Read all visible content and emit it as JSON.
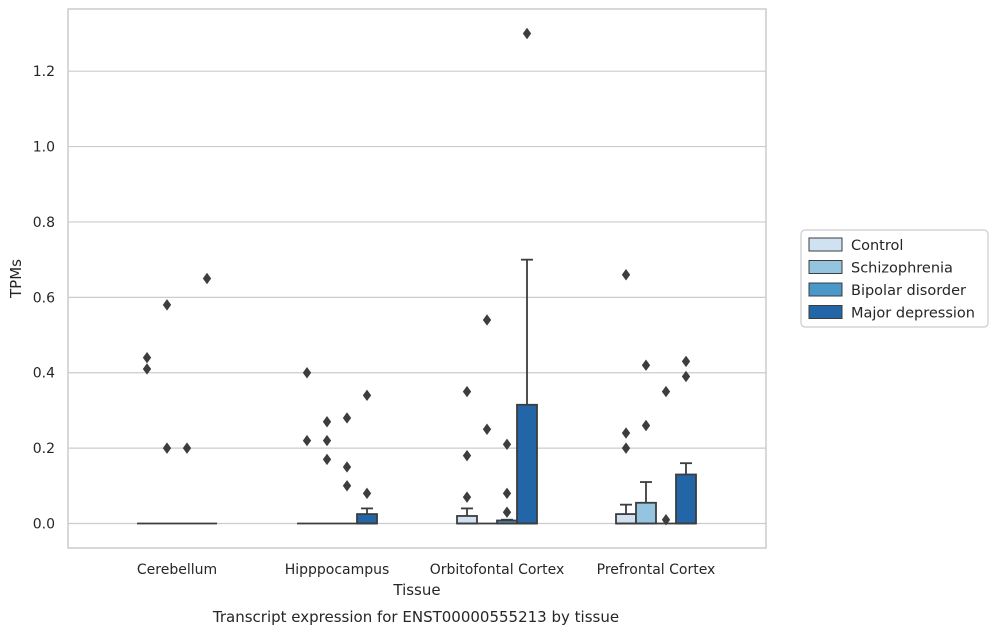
{
  "caption": "Transcript expression for ENST00000555213 by tissue",
  "colors": {
    "Control": "#d0e1f2",
    "Schizophrenia": "#94c4df",
    "Bipolar disorder": "#4a98c9",
    "Major depression": "#2366a8",
    "grid": "#cccccc",
    "edge": "#3d3d3d"
  },
  "chart_data": {
    "type": "box",
    "xlabel": "Tissue",
    "ylabel": "TPMs",
    "ylim": [
      -0.065,
      1.365
    ],
    "yticks": [
      0.0,
      0.2,
      0.4,
      0.6,
      0.8,
      1.0,
      1.2
    ],
    "ytick_labels": [
      "0.0",
      "0.2",
      "0.4",
      "0.6",
      "0.8",
      "1.0",
      "1.2"
    ],
    "grid": "horizontal",
    "legend_position": "right",
    "categories": [
      "Cerebellum",
      "Hipppocampus",
      "Orbitofontal Cortex",
      "Prefrontal Cortex"
    ],
    "series": [
      {
        "name": "Control",
        "boxes": [
          {
            "q1": 0,
            "median": 0,
            "q3": 0,
            "whisker_low": 0,
            "whisker_high": 0,
            "outliers": [
              0.44,
              0.41
            ]
          },
          {
            "q1": 0,
            "median": 0,
            "q3": 0,
            "whisker_low": 0,
            "whisker_high": 0,
            "outliers": [
              0.4,
              0.22
            ]
          },
          {
            "q1": 0,
            "median": 0,
            "q3": 0.02,
            "whisker_low": 0,
            "whisker_high": 0.04,
            "outliers": [
              0.35,
              0.18,
              0.07
            ]
          },
          {
            "q1": 0,
            "median": 0,
            "q3": 0.025,
            "whisker_low": 0,
            "whisker_high": 0.05,
            "outliers": [
              0.66,
              0.24,
              0.2
            ]
          }
        ]
      },
      {
        "name": "Schizophrenia",
        "boxes": [
          {
            "q1": 0,
            "median": 0,
            "q3": 0,
            "whisker_low": 0,
            "whisker_high": 0,
            "outliers": [
              0.58,
              0.2
            ]
          },
          {
            "q1": 0,
            "median": 0,
            "q3": 0,
            "whisker_low": 0,
            "whisker_high": 0,
            "outliers": [
              0.27,
              0.22,
              0.17
            ]
          },
          {
            "q1": 0,
            "median": 0,
            "q3": 0,
            "whisker_low": 0,
            "whisker_high": 0,
            "outliers": [
              0.54,
              0.25
            ]
          },
          {
            "q1": 0,
            "median": 0,
            "q3": 0.055,
            "whisker_low": 0,
            "whisker_high": 0.11,
            "outliers": [
              0.42,
              0.26
            ]
          }
        ]
      },
      {
        "name": "Bipolar disorder",
        "boxes": [
          {
            "q1": 0,
            "median": 0,
            "q3": 0,
            "whisker_low": 0,
            "whisker_high": 0,
            "outliers": [
              0.2
            ]
          },
          {
            "q1": 0,
            "median": 0,
            "q3": 0,
            "whisker_low": 0,
            "whisker_high": 0,
            "outliers": [
              0.28,
              0.15,
              0.1
            ]
          },
          {
            "q1": 0,
            "median": 0,
            "q3": 0.008,
            "whisker_low": 0,
            "whisker_high": 0.01,
            "outliers": [
              0.21,
              0.08,
              0.03
            ]
          },
          {
            "q1": 0,
            "median": 0,
            "q3": 0,
            "whisker_low": 0,
            "whisker_high": 0,
            "outliers": [
              0.35,
              0.01
            ]
          }
        ]
      },
      {
        "name": "Major depression",
        "boxes": [
          {
            "q1": 0,
            "median": 0,
            "q3": 0,
            "whisker_low": 0,
            "whisker_high": 0,
            "outliers": [
              0.65
            ]
          },
          {
            "q1": 0,
            "median": 0,
            "q3": 0.025,
            "whisker_low": 0,
            "whisker_high": 0.04,
            "outliers": [
              0.34,
              0.08
            ]
          },
          {
            "q1": 0,
            "median": 0,
            "q3": 0.315,
            "whisker_low": 0,
            "whisker_high": 0.7,
            "outliers": [
              1.3
            ]
          },
          {
            "q1": 0,
            "median": 0,
            "q3": 0.13,
            "whisker_low": 0,
            "whisker_high": 0.16,
            "outliers": [
              0.43,
              0.39
            ]
          }
        ]
      }
    ]
  }
}
